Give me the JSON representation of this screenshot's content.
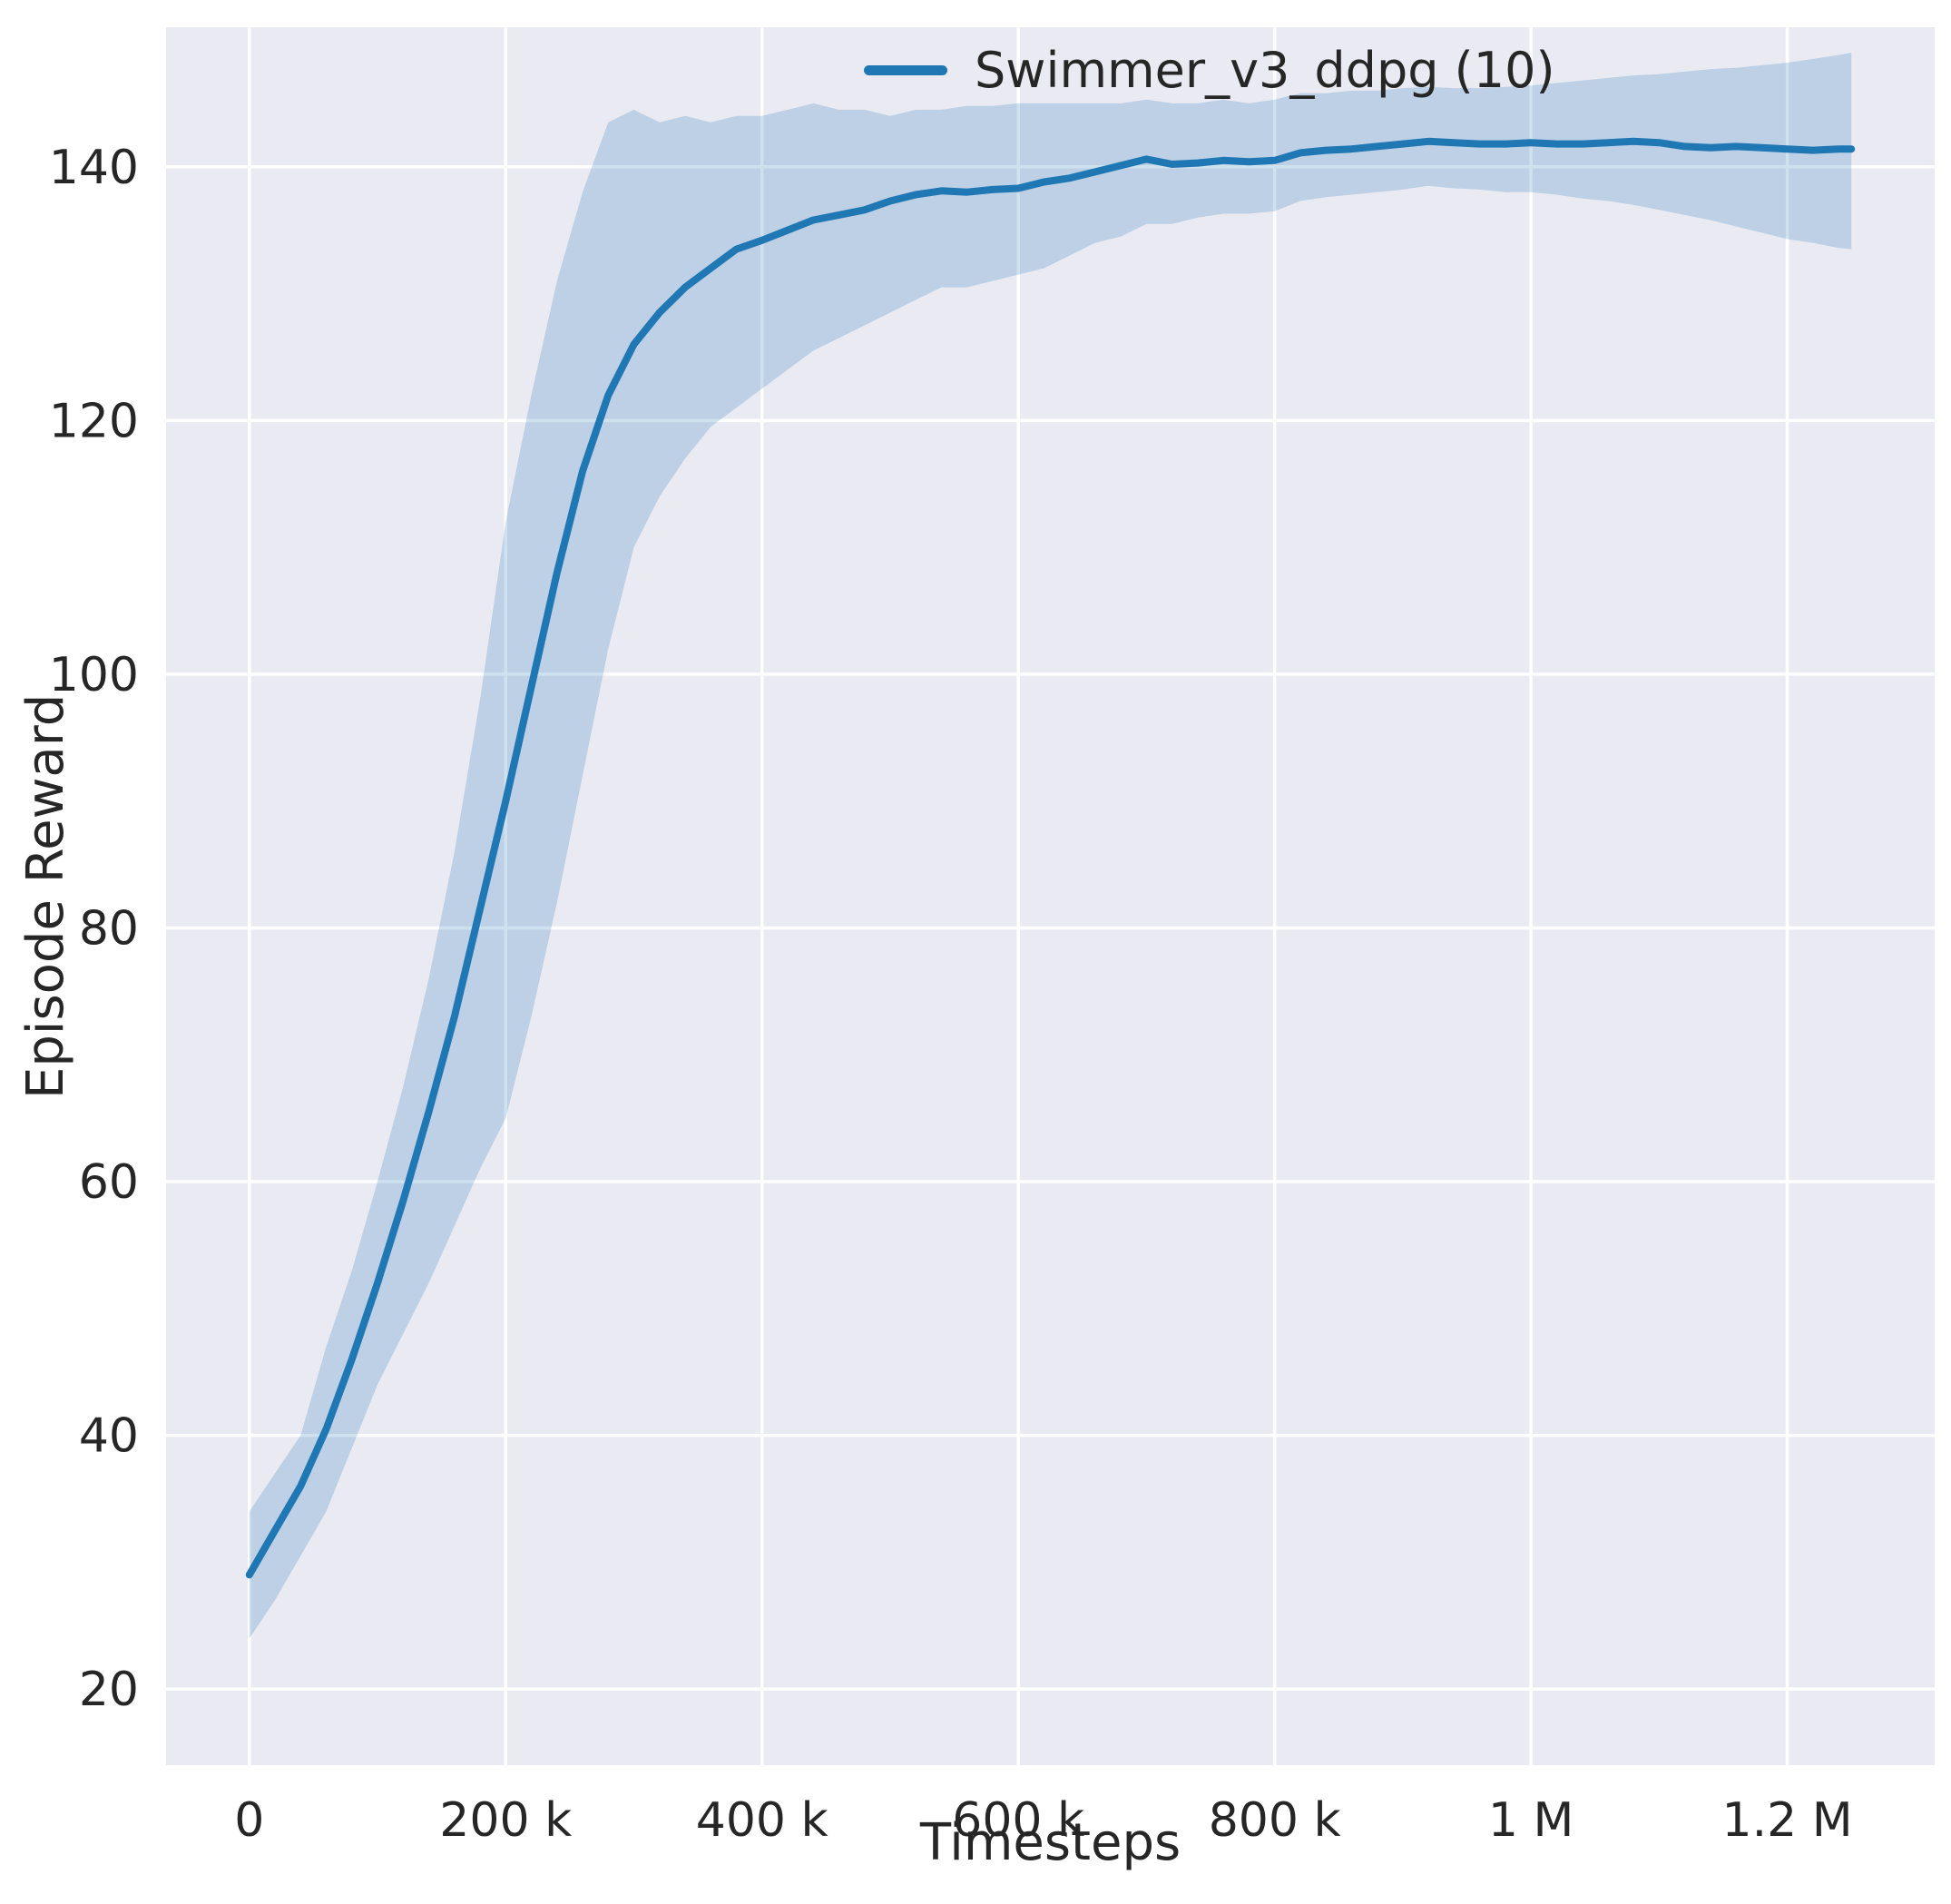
{
  "chart_data": {
    "type": "line",
    "title": "",
    "xlabel": "Timesteps",
    "ylabel": "Episode Reward",
    "legend": [
      {
        "label": "Swimmer_v3_ddpg (10)",
        "color": "#1f77b4"
      }
    ],
    "legend_position": "upper right inside axes",
    "grid": true,
    "colors": {
      "line": "#1f77b4",
      "band": "#1f77b4",
      "band_alpha": 0.22,
      "axes_bg": "#eaeaf2",
      "figure_bg": "#ffffff",
      "grid": "#ffffff",
      "text": "#262626"
    },
    "xlim": [
      -65000,
      1315000
    ],
    "ylim": [
      14,
      151
    ],
    "xticks": [
      {
        "value": 0,
        "label": "0"
      },
      {
        "value": 200000,
        "label": "200 k"
      },
      {
        "value": 400000,
        "label": "400 k"
      },
      {
        "value": 600000,
        "label": "600 k"
      },
      {
        "value": 800000,
        "label": "800 k"
      },
      {
        "value": 1000000,
        "label": "1 M"
      },
      {
        "value": 1200000,
        "label": "1.2 M"
      }
    ],
    "yticks": [
      {
        "value": 20,
        "label": "20"
      },
      {
        "value": 40,
        "label": "40"
      },
      {
        "value": 60,
        "label": "60"
      },
      {
        "value": 80,
        "label": "80"
      },
      {
        "value": 100,
        "label": "100"
      },
      {
        "value": 120,
        "label": "120"
      },
      {
        "value": 140,
        "label": "140"
      }
    ],
    "series": [
      {
        "name": "Swimmer_v3_ddpg (10)",
        "x": [
          0,
          20000,
          40000,
          60000,
          80000,
          100000,
          120000,
          140000,
          160000,
          180000,
          200000,
          220000,
          240000,
          260000,
          280000,
          300000,
          320000,
          340000,
          360000,
          380000,
          400000,
          420000,
          440000,
          460000,
          480000,
          500000,
          520000,
          540000,
          560000,
          580000,
          600000,
          620000,
          640000,
          660000,
          680000,
          700000,
          720000,
          740000,
          760000,
          780000,
          800000,
          820000,
          840000,
          860000,
          880000,
          900000,
          920000,
          940000,
          960000,
          980000,
          1000000,
          1020000,
          1040000,
          1060000,
          1080000,
          1100000,
          1120000,
          1140000,
          1160000,
          1180000,
          1200000,
          1220000,
          1240000,
          1250000
        ],
        "mean": [
          29,
          32.5,
          36,
          40.5,
          46,
          52,
          58.5,
          65.5,
          73,
          81.5,
          90,
          99,
          108,
          116,
          122,
          126,
          128.5,
          130.5,
          132,
          133.5,
          134.2,
          135,
          135.8,
          136.2,
          136.6,
          137.3,
          137.8,
          138.1,
          138.0,
          138.2,
          138.3,
          138.8,
          139.1,
          139.6,
          140.1,
          140.6,
          140.2,
          140.3,
          140.5,
          140.4,
          140.5,
          141.1,
          141.3,
          141.4,
          141.6,
          141.8,
          142.0,
          141.9,
          141.8,
          141.8,
          141.9,
          141.8,
          141.8,
          141.9,
          142.0,
          141.9,
          141.6,
          141.5,
          141.6,
          141.5,
          141.4,
          141.3,
          141.4,
          141.4
        ],
        "lower": [
          24,
          27,
          30.5,
          34,
          39,
          44,
          48,
          52,
          56.5,
          61,
          65,
          73,
          82,
          92,
          102,
          110,
          114,
          117,
          119.5,
          121,
          122.5,
          124,
          125.5,
          126.5,
          127.5,
          128.5,
          129.5,
          130.5,
          130.5,
          131,
          131.5,
          132,
          133,
          134,
          134.5,
          135.5,
          135.5,
          136,
          136.3,
          136.3,
          136.5,
          137.3,
          137.6,
          137.8,
          138,
          138.2,
          138.5,
          138.3,
          138.2,
          138,
          138,
          137.8,
          137.5,
          137.3,
          137,
          136.6,
          136.2,
          135.8,
          135.3,
          134.8,
          134.3,
          134,
          133.6,
          133.5
        ],
        "upper": [
          34,
          37,
          40,
          47,
          53,
          60,
          67.5,
          76,
          86,
          98,
          112,
          122,
          131,
          138,
          143.5,
          144.5,
          143.5,
          144,
          143.5,
          144,
          144,
          144.5,
          145,
          144.5,
          144.5,
          144,
          144.5,
          144.5,
          144.8,
          144.8,
          145,
          145,
          145,
          145,
          145,
          145.3,
          145,
          145,
          145.3,
          145,
          145.3,
          145.8,
          145.8,
          146,
          146,
          146.2,
          146.3,
          146.2,
          146.2,
          146.3,
          146.4,
          146.6,
          146.8,
          147,
          147.2,
          147.3,
          147.5,
          147.7,
          147.8,
          148,
          148.2,
          148.5,
          148.8,
          149
        ]
      }
    ]
  }
}
